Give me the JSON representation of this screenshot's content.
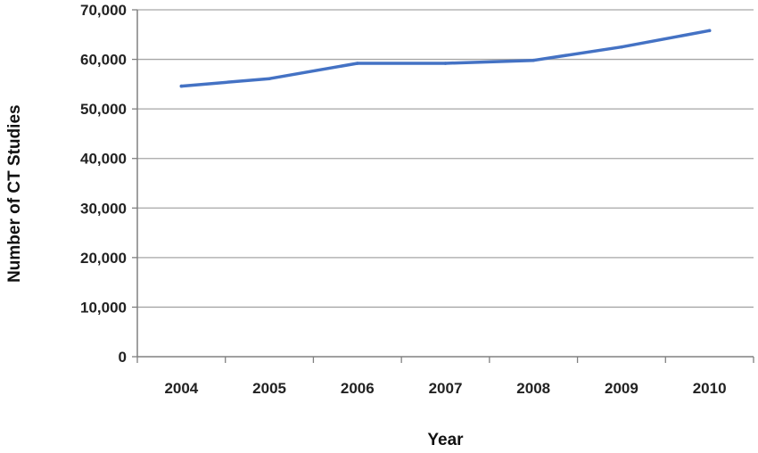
{
  "chart_data": {
    "type": "line",
    "title": "",
    "xlabel": "Year",
    "ylabel": "Number of CT Studies",
    "x": [
      "2004",
      "2005",
      "2006",
      "2007",
      "2008",
      "2009",
      "2010"
    ],
    "series": [
      {
        "values": [
          54600,
          56100,
          59200,
          59200,
          59800,
          62500,
          65800
        ]
      }
    ],
    "ylim": [
      0,
      70000
    ],
    "yticks": [
      0,
      10000,
      20000,
      30000,
      40000,
      50000,
      60000,
      70000
    ],
    "ytick_labels": [
      "0",
      "10,000",
      "20,000",
      "30,000",
      "40,000",
      "50,000",
      "60,000",
      "70,000"
    ],
    "grid": true,
    "legend": "none",
    "colors": {
      "line": "#4472c4",
      "grid": "#a6a6a6",
      "axis": "#808080"
    }
  }
}
